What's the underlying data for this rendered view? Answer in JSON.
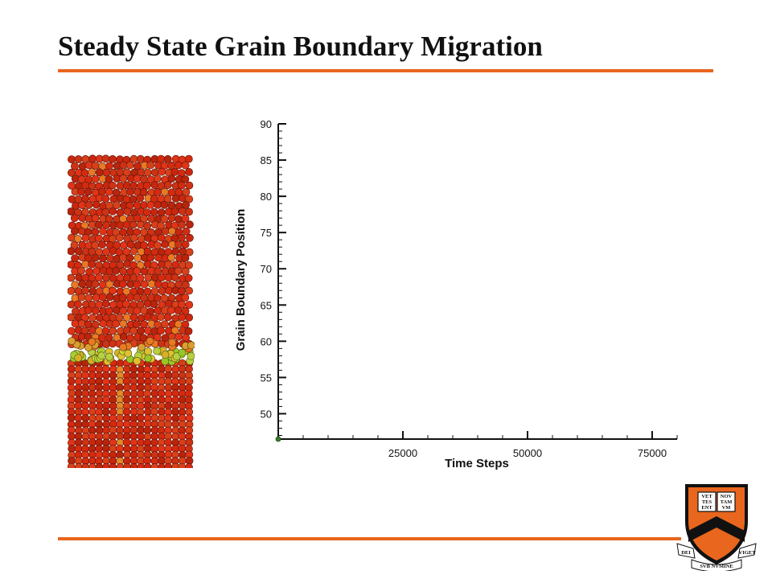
{
  "title": "Steady State Grain Boundary Migration",
  "colors": {
    "accent_rule": "#e8661d",
    "atom_red": "#d42a10",
    "atom_boundary": "#a8d030",
    "shield_orange": "#e8661d",
    "shield_black": "#111111"
  },
  "chart_data": {
    "type": "line",
    "xlabel": "Time Steps",
    "ylabel": "Grain Boundary Position",
    "x_ticks": [
      25000,
      50000,
      75000
    ],
    "x_tick_labels": [
      "25000",
      "50000",
      "75000"
    ],
    "y_ticks": [
      50,
      55,
      60,
      65,
      70,
      75,
      80,
      85,
      90
    ],
    "y_tick_labels": [
      "50",
      "55",
      "60",
      "65",
      "70",
      "75",
      "80",
      "85",
      "90"
    ],
    "xlim": [
      0,
      80000
    ],
    "ylim": [
      46.5,
      90
    ],
    "series": [
      {
        "x": [
          0
        ],
        "y": [
          46.5
        ],
        "color": "#3a7a2a"
      }
    ]
  },
  "simulation": {
    "description_icon": "atom-lattice-snapshot",
    "boundary_fraction": 0.64
  },
  "logo": {
    "icon": "university-shield-icon",
    "book_text": [
      "VET",
      "NOV",
      "TES",
      "TAM",
      "ENT",
      "VM"
    ],
    "ribbon_left": "DEI",
    "ribbon_center": "SVB NVMINE",
    "ribbon_right": "VIGET"
  }
}
